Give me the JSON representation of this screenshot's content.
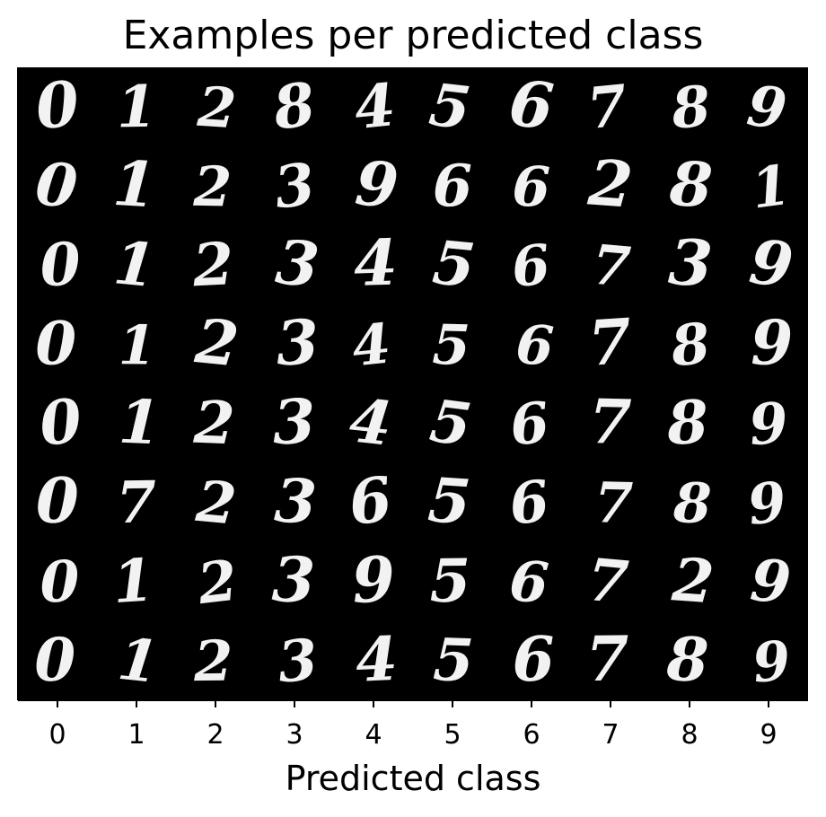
{
  "chart_data": {
    "type": "heatmap",
    "title": "Examples per predicted class",
    "xlabel": "Predicted class",
    "ylabel": "",
    "x_ticks": [
      "0",
      "1",
      "2",
      "3",
      "4",
      "5",
      "6",
      "7",
      "8",
      "9"
    ],
    "y_ticks": [],
    "grid": false,
    "colormap": "gray",
    "background_color": "#000000",
    "digit_color": "#f2f2f2",
    "rows": [
      [
        "0",
        "1",
        "2",
        "8",
        "4",
        "5",
        "6",
        "7",
        "8",
        "9"
      ],
      [
        "0",
        "1",
        "2",
        "3",
        "9",
        "6",
        "6",
        "2",
        "8",
        "1"
      ],
      [
        "0",
        "1",
        "2",
        "3",
        "4",
        "5",
        "6",
        "7",
        "3",
        "9"
      ],
      [
        "0",
        "1",
        "2",
        "3",
        "4",
        "5",
        "6",
        "7",
        "8",
        "9"
      ],
      [
        "0",
        "1",
        "2",
        "3",
        "4",
        "5",
        "6",
        "7",
        "8",
        "9"
      ],
      [
        "0",
        "7",
        "2",
        "3",
        "6",
        "5",
        "6",
        "7",
        "8",
        "9"
      ],
      [
        "0",
        "1",
        "2",
        "3",
        "9",
        "5",
        "6",
        "7",
        "2",
        "9"
      ],
      [
        "0",
        "1",
        "2",
        "3",
        "4",
        "5",
        "6",
        "7",
        "8",
        "9"
      ]
    ]
  }
}
